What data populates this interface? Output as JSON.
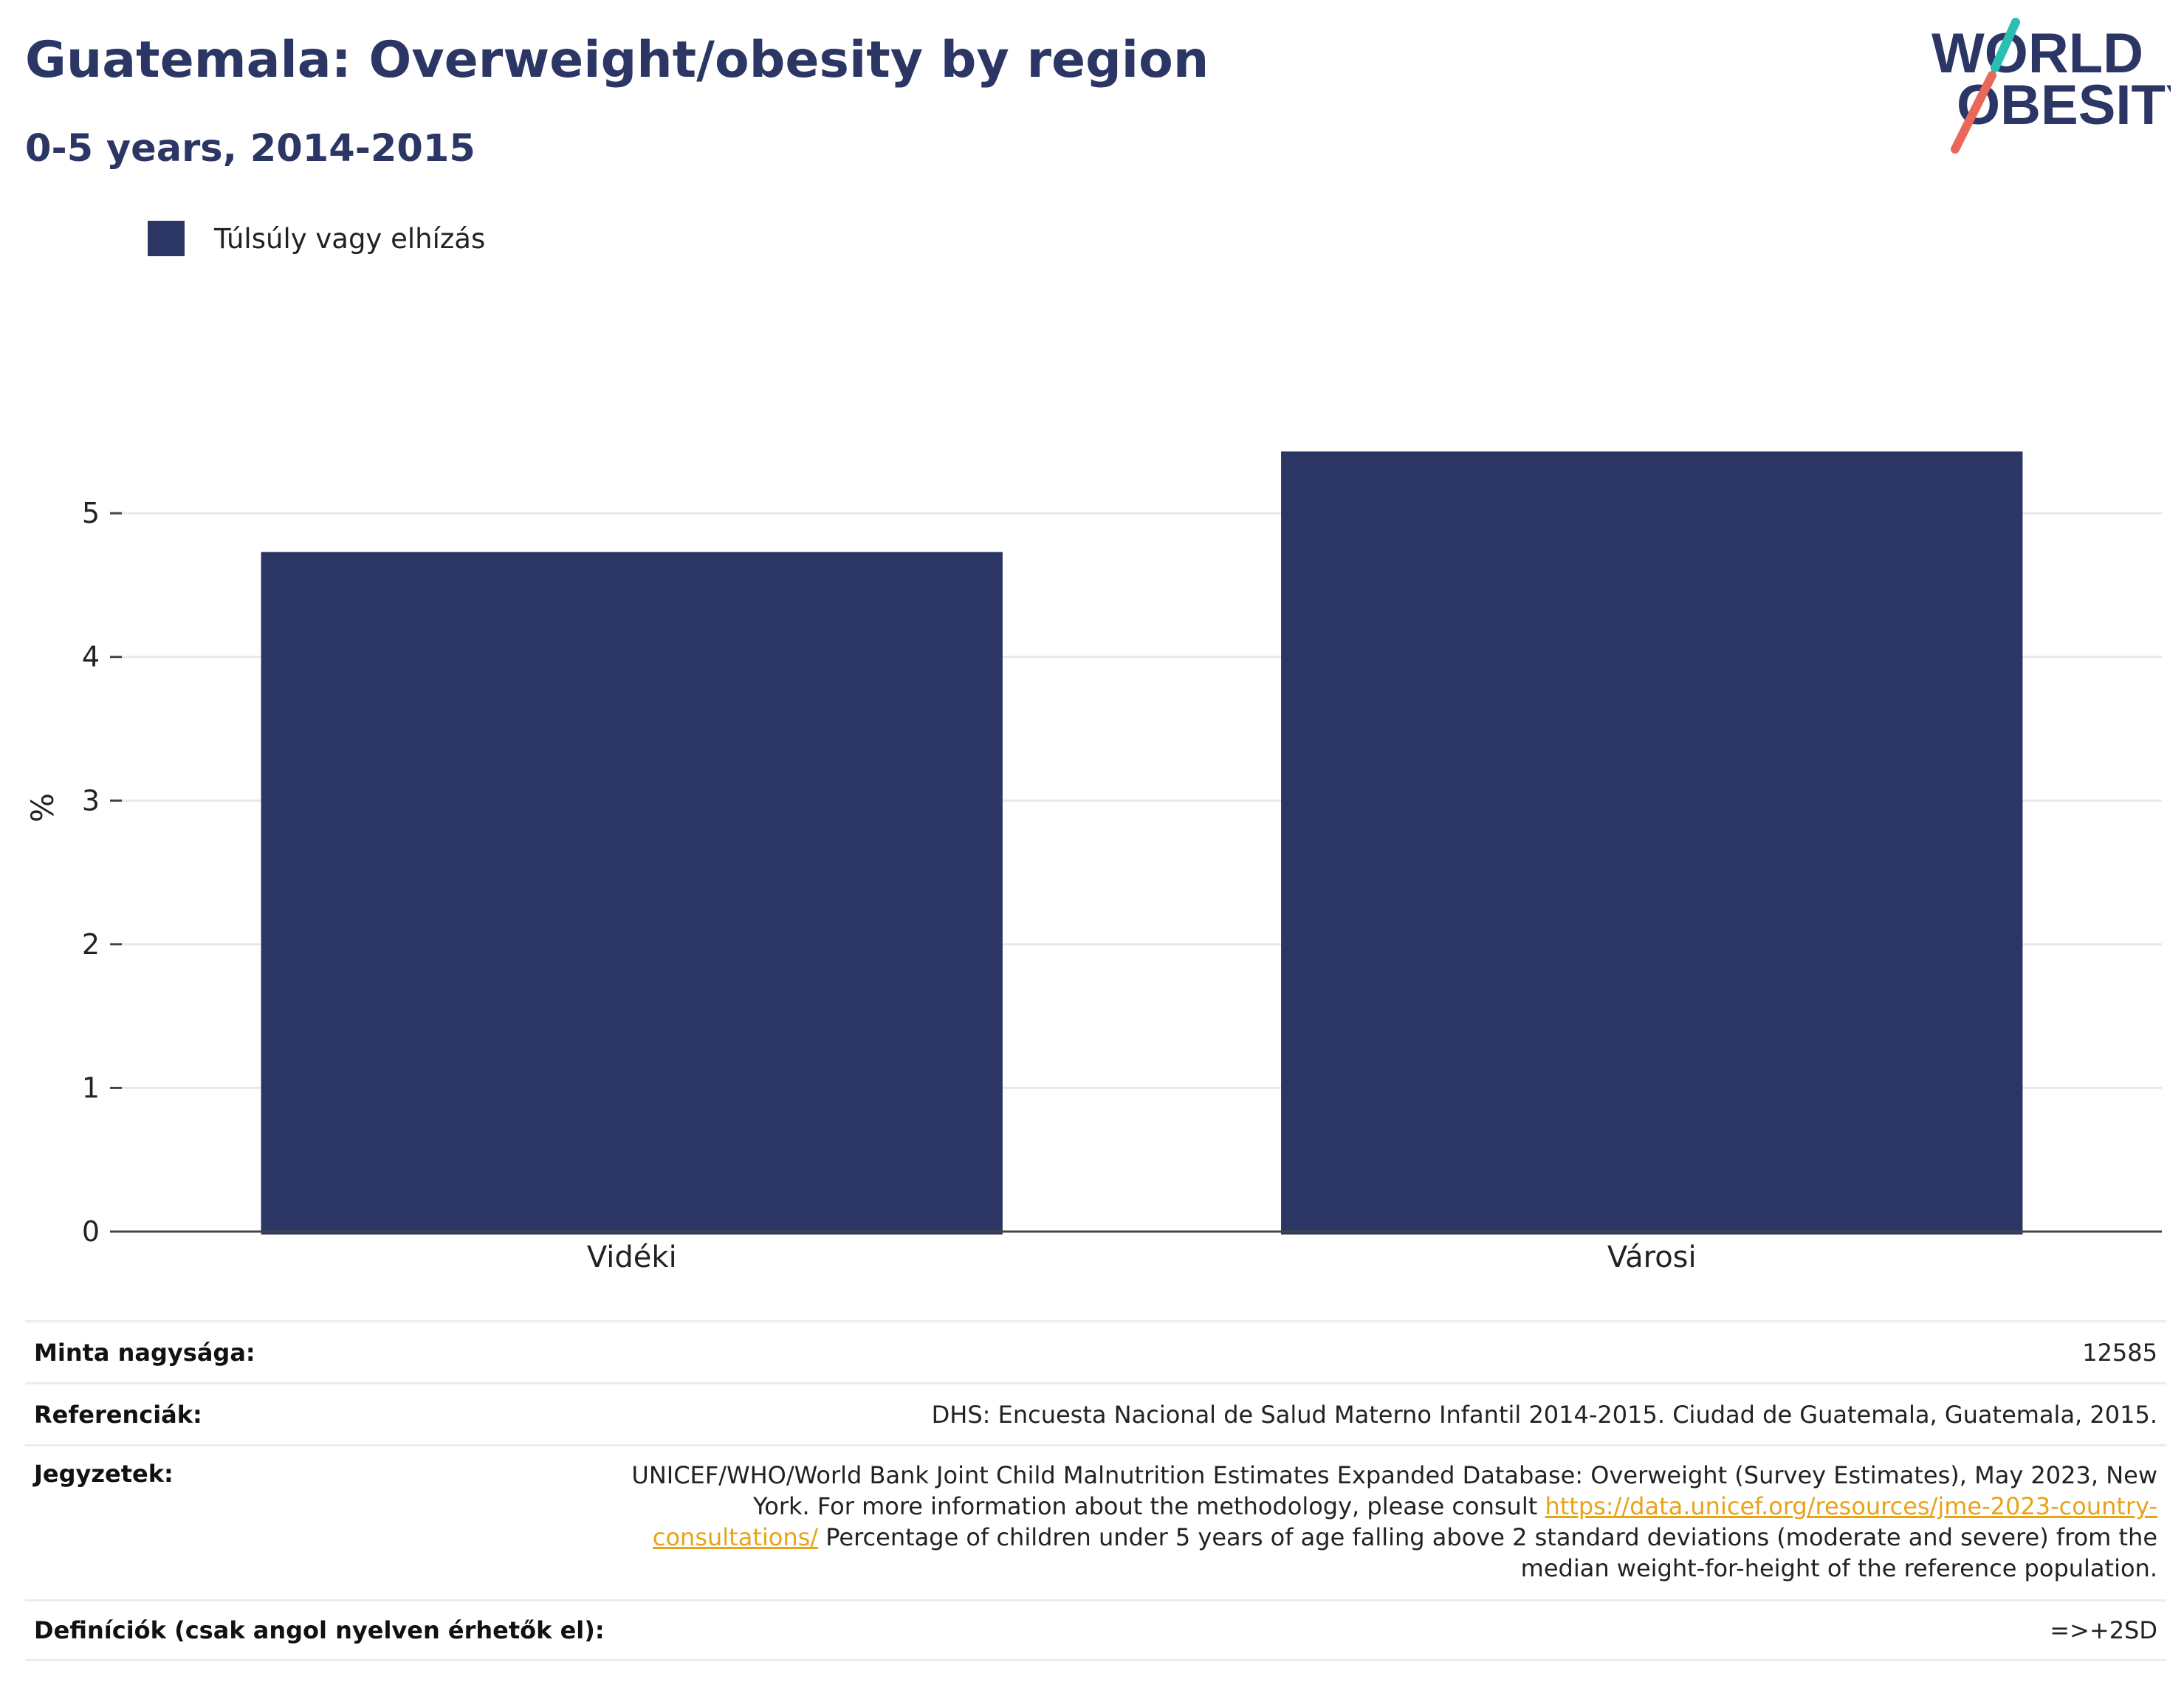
{
  "header": {
    "title": "Guatemala: Overweight/obesity by region",
    "subtitle": "0-5 years, 2014-2015"
  },
  "logo": {
    "line1": "WORLD",
    "line2": "OBESITY",
    "colors": {
      "text": "#2b3664",
      "slash_top": "#2bbfb3",
      "slash_bottom": "#e8685a"
    }
  },
  "legend": {
    "label": "Túlsúly vagy elhízás",
    "color": "#2b3664"
  },
  "chart_data": {
    "type": "bar",
    "categories": [
      "Vidéki",
      "Városi"
    ],
    "series": [
      {
        "name": "Túlsúly vagy elhízás",
        "values": [
          4.73,
          5.43
        ],
        "color": "#2b3664"
      }
    ],
    "ylabel": "%",
    "xlabel": "",
    "ylim": [
      0,
      5.9
    ],
    "yticks": [
      0,
      1,
      2,
      3,
      4,
      5
    ],
    "grid": true,
    "legend_position": "top-left"
  },
  "info": {
    "sample_size": {
      "label": "Minta nagysága:",
      "value": "12585"
    },
    "references": {
      "label": "Referenciák:",
      "value": "DHS: Encuesta Nacional de Salud Materno Infantil 2014-2015. Ciudad de Guatemala, Guatemala, 2015."
    },
    "notes": {
      "label": "Jegyzetek:",
      "text_before_link": "UNICEF/WHO/World Bank Joint Child Malnutrition Estimates Expanded Database: Overweight (Survey Estimates), May 2023, New York. For more information about the methodology, please consult ",
      "link": "https://data.unicef.org/resources/jme-2023-country-consultations/",
      "text_after_link": " Percentage of children under 5 years of age falling above 2 standard deviations (moderate and severe) from the median weight-for-height of the reference population."
    },
    "definitions": {
      "label": "Definíciók (csak angol nyelven érhetők el):",
      "value": "=>+2SD"
    }
  }
}
